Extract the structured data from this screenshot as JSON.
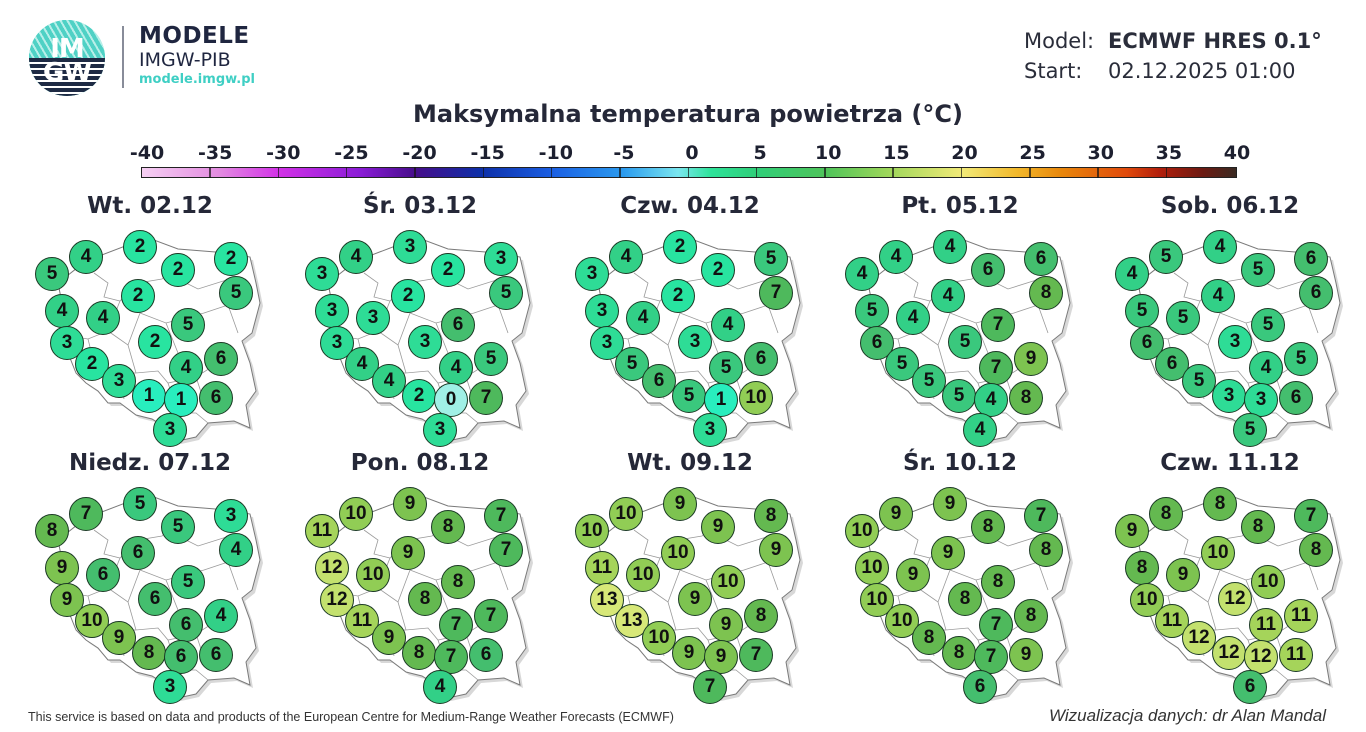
{
  "header": {
    "logo": {
      "top_text": "IM",
      "bottom_text": "GW",
      "icon": "imgw-logo-icon"
    },
    "brand_title": "MODELE",
    "brand_subtitle": "IMGW-PIB",
    "brand_url": "modele.imgw.pl",
    "model_label": "Model:",
    "model_value": "ECMWF HRES 0.1°",
    "start_label": "Start:",
    "start_value": "02.12.2025 01:00"
  },
  "title": "Maksymalna temperatura powietrza (°C)",
  "colorbar": {
    "ticks": [
      "-40",
      "-35",
      "-30",
      "-25",
      "-20",
      "-15",
      "-10",
      "-5",
      "0",
      "5",
      "10",
      "15",
      "20",
      "25",
      "30",
      "35",
      "40"
    ],
    "min": -40,
    "max": 40
  },
  "stations": [
    [
      32,
      49
    ],
    [
      66,
      32
    ],
    [
      120,
      22
    ],
    [
      158,
      45
    ],
    [
      211,
      34
    ],
    [
      42,
      86
    ],
    [
      83,
      93
    ],
    [
      118,
      71
    ],
    [
      216,
      68
    ],
    [
      47,
      118
    ],
    [
      135,
      117
    ],
    [
      168,
      100
    ],
    [
      72,
      139
    ],
    [
      166,
      143
    ],
    [
      201,
      134
    ],
    [
      99,
      156
    ],
    [
      129,
      171
    ],
    [
      161,
      175
    ],
    [
      196,
      173
    ],
    [
      150,
      205
    ]
  ],
  "days": [
    {
      "label": "Wt. 02.12",
      "values": [
        5,
        4,
        2,
        2,
        2,
        4,
        4,
        2,
        5,
        3,
        2,
        5,
        2,
        4,
        6,
        3,
        1,
        1,
        6,
        3
      ]
    },
    {
      "label": "Śr. 03.12",
      "values": [
        3,
        4,
        3,
        2,
        3,
        3,
        3,
        2,
        5,
        3,
        3,
        6,
        4,
        4,
        5,
        4,
        2,
        0,
        7,
        3
      ]
    },
    {
      "label": "Czw. 04.12",
      "values": [
        3,
        4,
        2,
        2,
        5,
        3,
        4,
        2,
        7,
        3,
        3,
        4,
        5,
        5,
        6,
        6,
        5,
        1,
        10,
        3
      ]
    },
    {
      "label": "Pt. 05.12",
      "values": [
        4,
        4,
        4,
        6,
        6,
        5,
        4,
        4,
        8,
        6,
        5,
        7,
        5,
        7,
        9,
        5,
        5,
        4,
        8,
        4
      ]
    },
    {
      "label": "Sob. 06.12",
      "values": [
        4,
        5,
        4,
        5,
        6,
        5,
        5,
        4,
        6,
        6,
        3,
        5,
        6,
        4,
        5,
        5,
        3,
        3,
        6,
        5
      ]
    },
    {
      "label": "Niedz. 07.12",
      "values": [
        8,
        7,
        5,
        5,
        3,
        9,
        6,
        6,
        4,
        9,
        6,
        5,
        10,
        6,
        4,
        9,
        8,
        6,
        6,
        3
      ]
    },
    {
      "label": "Pon. 08.12",
      "values": [
        11,
        10,
        9,
        8,
        7,
        12,
        10,
        9,
        7,
        12,
        8,
        8,
        11,
        7,
        7,
        9,
        8,
        7,
        6,
        4
      ]
    },
    {
      "label": "Wt. 09.12",
      "values": [
        10,
        10,
        9,
        9,
        8,
        11,
        10,
        10,
        9,
        13,
        9,
        10,
        13,
        9,
        8,
        10,
        9,
        9,
        7,
        7
      ]
    },
    {
      "label": "Śr. 10.12",
      "values": [
        10,
        9,
        9,
        8,
        7,
        10,
        9,
        9,
        8,
        10,
        8,
        8,
        10,
        7,
        8,
        8,
        8,
        7,
        9,
        6
      ]
    },
    {
      "label": "Czw. 11.12",
      "values": [
        9,
        8,
        8,
        8,
        7,
        8,
        9,
        10,
        8,
        10,
        12,
        10,
        11,
        11,
        11,
        12,
        12,
        12,
        11,
        6
      ]
    }
  ],
  "footer": {
    "attribution": "This service is based on data and products of the European Centre for Medium-Range Weather Forecasts (ECMWF)",
    "credit": "Wizualizacja danych: dr Alan Mandal"
  }
}
